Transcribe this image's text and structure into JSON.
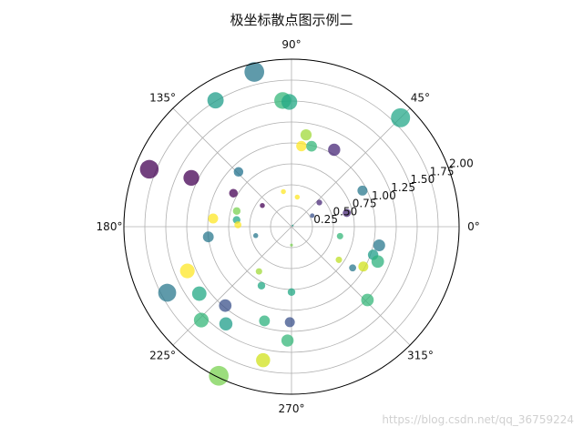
{
  "chart_data": {
    "type": "scatter",
    "projection": "polar",
    "title": "极坐标散点图示例二",
    "rlim": [
      0,
      2.0
    ],
    "r_ticks": [
      0.25,
      0.5,
      0.75,
      1.0,
      1.25,
      1.5,
      1.75,
      2.0
    ],
    "r_tick_labels": [
      "0.25",
      "0.50",
      "0.75",
      "1.00",
      "1.25",
      "1.50",
      "1.75",
      "2.00"
    ],
    "theta_ticks_deg": [
      0,
      45,
      90,
      135,
      180,
      225,
      270,
      315
    ],
    "theta_tick_labels": [
      "0°",
      "45°",
      "90°",
      "135°",
      "180°",
      "225°",
      "270°",
      "315°"
    ],
    "grid": true,
    "colormap": "viridis",
    "alpha": 0.75,
    "points": [
      {
        "theta_deg": 45.0,
        "r": 1.84,
        "size": 440,
        "color": "#26a88a"
      },
      {
        "theta_deg": 103.5,
        "r": 1.9,
        "size": 470,
        "color": "#2a788e"
      },
      {
        "theta_deg": 94.0,
        "r": 1.51,
        "size": 340,
        "color": "#35b779"
      },
      {
        "theta_deg": 91.0,
        "r": 1.49,
        "size": 300,
        "color": "#22a884"
      },
      {
        "theta_deg": 121.0,
        "r": 1.76,
        "size": 320,
        "color": "#1f9e89"
      },
      {
        "theta_deg": 158.0,
        "r": 1.83,
        "size": 420,
        "color": "#440154"
      },
      {
        "theta_deg": 154.0,
        "r": 1.33,
        "size": 300,
        "color": "#440154"
      },
      {
        "theta_deg": 134.0,
        "r": 0.91,
        "size": 110,
        "color": "#21718e"
      },
      {
        "theta_deg": 81.0,
        "r": 1.11,
        "size": 150,
        "color": "#a0da39"
      },
      {
        "theta_deg": 83.0,
        "r": 0.97,
        "size": 130,
        "color": "#fde725"
      },
      {
        "theta_deg": 76.0,
        "r": 0.99,
        "size": 140,
        "color": "#35b779"
      },
      {
        "theta_deg": 61.0,
        "r": 1.05,
        "size": 180,
        "color": "#482878"
      },
      {
        "theta_deg": 27.0,
        "r": 0.95,
        "size": 120,
        "color": "#2a788e"
      },
      {
        "theta_deg": 14.0,
        "r": 0.68,
        "size": 80,
        "color": "#482878"
      },
      {
        "theta_deg": 41.0,
        "r": 0.44,
        "size": 40,
        "color": "#482878"
      },
      {
        "theta_deg": 28.0,
        "r": 0.28,
        "size": 25,
        "color": "#3b528b"
      },
      {
        "theta_deg": 79.0,
        "r": 0.36,
        "size": 30,
        "color": "#fde725"
      },
      {
        "theta_deg": 103.0,
        "r": 0.43,
        "size": 30,
        "color": "#fde725"
      },
      {
        "theta_deg": 144.0,
        "r": 0.43,
        "size": 30,
        "color": "#440154"
      },
      {
        "theta_deg": 150.0,
        "r": 0.8,
        "size": 90,
        "color": "#440154"
      },
      {
        "theta_deg": 164.0,
        "r": 0.68,
        "size": 70,
        "color": "#7ad151"
      },
      {
        "theta_deg": 173.0,
        "r": 0.66,
        "size": 70,
        "color": "#26a88a"
      },
      {
        "theta_deg": 174.0,
        "r": 0.94,
        "size": 120,
        "color": "#fde725"
      },
      {
        "theta_deg": 178.0,
        "r": 0.64,
        "size": 60,
        "color": "#fde725"
      },
      {
        "theta_deg": 187.0,
        "r": 1.0,
        "size": 140,
        "color": "#2a788e"
      },
      {
        "theta_deg": 194.0,
        "r": 0.44,
        "size": 30,
        "color": "#2a788e"
      },
      {
        "theta_deg": 45.0,
        "r": 0.02,
        "size": 4,
        "color": "#1f9e89"
      },
      {
        "theta_deg": 270.0,
        "r": 0.22,
        "size": 10,
        "color": "#7ad151"
      },
      {
        "theta_deg": 349.0,
        "r": 0.59,
        "size": 50,
        "color": "#35b779"
      },
      {
        "theta_deg": 341.0,
        "r": 1.03,
        "size": 130,
        "color": "#1f9e89"
      },
      {
        "theta_deg": 348.0,
        "r": 1.07,
        "size": 170,
        "color": "#2a788e"
      },
      {
        "theta_deg": 338.0,
        "r": 1.11,
        "size": 190,
        "color": "#2db27d"
      },
      {
        "theta_deg": 325.0,
        "r": 0.69,
        "size": 50,
        "color": "#bddf26"
      },
      {
        "theta_deg": 326.0,
        "r": 0.88,
        "size": 60,
        "color": "#2a788e"
      },
      {
        "theta_deg": 331.0,
        "r": 0.98,
        "size": 120,
        "color": "#d0e11c"
      },
      {
        "theta_deg": 316.0,
        "r": 1.26,
        "size": 190,
        "color": "#35b779"
      },
      {
        "theta_deg": 234.0,
        "r": 0.66,
        "size": 50,
        "color": "#a0da39"
      },
      {
        "theta_deg": 243.0,
        "r": 0.79,
        "size": 70,
        "color": "#22a884"
      },
      {
        "theta_deg": 270.0,
        "r": 0.78,
        "size": 70,
        "color": "#22a884"
      },
      {
        "theta_deg": 203.0,
        "r": 1.35,
        "size": 260,
        "color": "#fde725"
      },
      {
        "theta_deg": 208.0,
        "r": 1.68,
        "size": 390,
        "color": "#2a788e"
      },
      {
        "theta_deg": 216.0,
        "r": 1.36,
        "size": 250,
        "color": "#22a884"
      },
      {
        "theta_deg": 230.0,
        "r": 1.23,
        "size": 190,
        "color": "#3b528b"
      },
      {
        "theta_deg": 236.0,
        "r": 1.4,
        "size": 210,
        "color": "#1f9e89"
      },
      {
        "theta_deg": 226.0,
        "r": 1.55,
        "size": 260,
        "color": "#35b779"
      },
      {
        "theta_deg": 244.0,
        "r": 1.98,
        "size": 470,
        "color": "#7ad151"
      },
      {
        "theta_deg": 254.0,
        "r": 1.17,
        "size": 140,
        "color": "#2db27d"
      },
      {
        "theta_deg": 269.0,
        "r": 1.14,
        "size": 120,
        "color": "#3b528b"
      },
      {
        "theta_deg": 268.0,
        "r": 1.36,
        "size": 180,
        "color": "#35b779"
      },
      {
        "theta_deg": 258.0,
        "r": 1.63,
        "size": 240,
        "color": "#d0e11c"
      }
    ]
  },
  "watermark": "https://blog.csdn.net/qq_36759224"
}
